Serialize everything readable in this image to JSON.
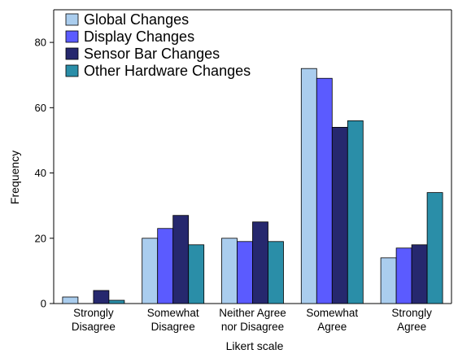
{
  "chart_data": {
    "type": "bar",
    "categories": [
      [
        "Strongly",
        "Disagree"
      ],
      [
        "Somewhat",
        "Disagree"
      ],
      [
        "Neither Agree",
        "nor Disagree"
      ],
      [
        "Somewhat",
        "Agree"
      ],
      [
        "Strongly",
        "Agree"
      ]
    ],
    "series": [
      {
        "name": "Global Changes",
        "values": [
          2,
          20,
          20,
          72,
          14
        ]
      },
      {
        "name": "Display Changes",
        "values": [
          0,
          23,
          19,
          69,
          17
        ]
      },
      {
        "name": "Sensor Bar Changes",
        "values": [
          4,
          27,
          25,
          54,
          18
        ]
      },
      {
        "name": "Other Hardware Changes",
        "values": [
          1,
          18,
          19,
          56,
          34
        ]
      }
    ],
    "colors": [
      "#aacdee",
      "#5b5bff",
      "#26286e",
      "#2a8ea8"
    ],
    "xlabel": "Likert scale",
    "ylabel": "Frequency",
    "ylim": [
      0,
      90
    ],
    "yticks": [
      0,
      20,
      40,
      60,
      80
    ],
    "legend_position": "top-left",
    "grid": false
  }
}
